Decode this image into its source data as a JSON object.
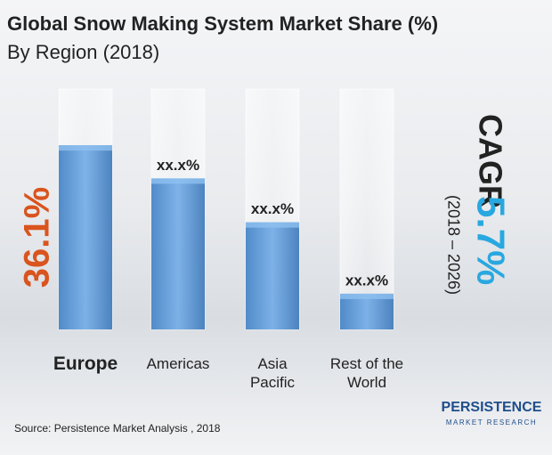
{
  "chart_data": {
    "type": "bar",
    "title": "Global Snow Making System Market Share (%)",
    "subtitle": "By Region (2018)",
    "categories": [
      "Europe",
      "Americas",
      "Asia Pacific",
      "Rest of the World"
    ],
    "values": [
      36.1,
      29.6,
      21,
      7
    ],
    "value_labels": [
      "36.1%",
      "xx.x%",
      "xx.x%",
      "xx.x%"
    ],
    "color": "#4a8fd6",
    "highlight_color": "#d9541e",
    "cagr_label": "CAGR",
    "cagr_value": "5.7%",
    "cagr_color": "#29a8e0",
    "cagr_period": "(2018 – 2026)",
    "source": "Source: Persistence Market Analysis , 2018",
    "logo": {
      "name": "PERSISTENCE",
      "tagline": "MARKET RESEARCH"
    }
  }
}
